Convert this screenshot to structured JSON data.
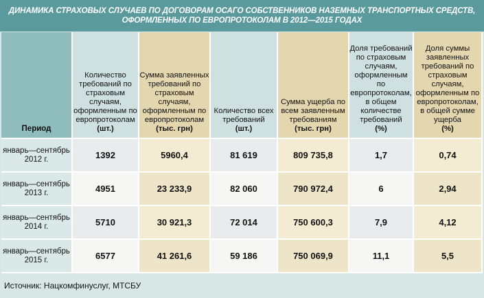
{
  "title": {
    "line1": "ДИНАМИКА СТРАХОВЫХ СЛУЧАЕВ ПО ДОГОВОРАМ ОСАГО СОБСТВЕННИКОВ НАЗЕМНЫХ ТРАНСПОРТНЫХ СРЕДСТВ,",
    "line2": "ОФОРМЛЕННЫХ ПО ЕВРОПРОТОКОЛАМ В 2012—2015 ГОДАХ"
  },
  "columns": [
    {
      "label": "Период",
      "unit": ""
    },
    {
      "label": "Количество требований по страховым случаям, оформленным по европротоколам",
      "unit": "(шт.)"
    },
    {
      "label": "Сумма заявленных требований по страховым случаям, оформленным по европротоколам",
      "unit": "(тыс. грн)"
    },
    {
      "label": "Количество всех требований",
      "unit": "(шт.)"
    },
    {
      "label": "Сумма ущерба по всем заявленным требованиям",
      "unit": "(тыс. грн)"
    },
    {
      "label": "Доля требований по страховым случаям, оформленным по европротоколам, в общем количестве требований",
      "unit": "(%)"
    },
    {
      "label": "Доля суммы заявленных требований по страховым случаям, оформленным по европротоколам, в общей сумме ущерба",
      "unit": "(%)"
    }
  ],
  "rows": [
    {
      "period": "январь—сентябрь 2012 г.",
      "count_euro": "1392",
      "sum_euro": "5960,4",
      "count_all": "81 619",
      "sum_all": "809 735,8",
      "share_count": "1,7",
      "share_sum": "0,74"
    },
    {
      "period": "январь—сентябрь 2013 г.",
      "count_euro": "4951",
      "sum_euro": "23 233,9",
      "count_all": "82 060",
      "sum_all": "790 972,4",
      "share_count": "6",
      "share_sum": "2,94"
    },
    {
      "period": "январь—сентябрь 2014 г.",
      "count_euro": "5710",
      "sum_euro": "30 921,3",
      "count_all": "72 014",
      "sum_all": "750 600,3",
      "share_count": "7,9",
      "share_sum": "4,12"
    },
    {
      "period": "январь—сентябрь 2015 г.",
      "count_euro": "6577",
      "sum_euro": "41 261,6",
      "count_all": "59 186",
      "sum_all": "750 069,9",
      "share_count": "11,1",
      "share_sum": "5,5"
    }
  ],
  "source": "Источник: Нацкомфинуслуг, МТСБУ"
}
